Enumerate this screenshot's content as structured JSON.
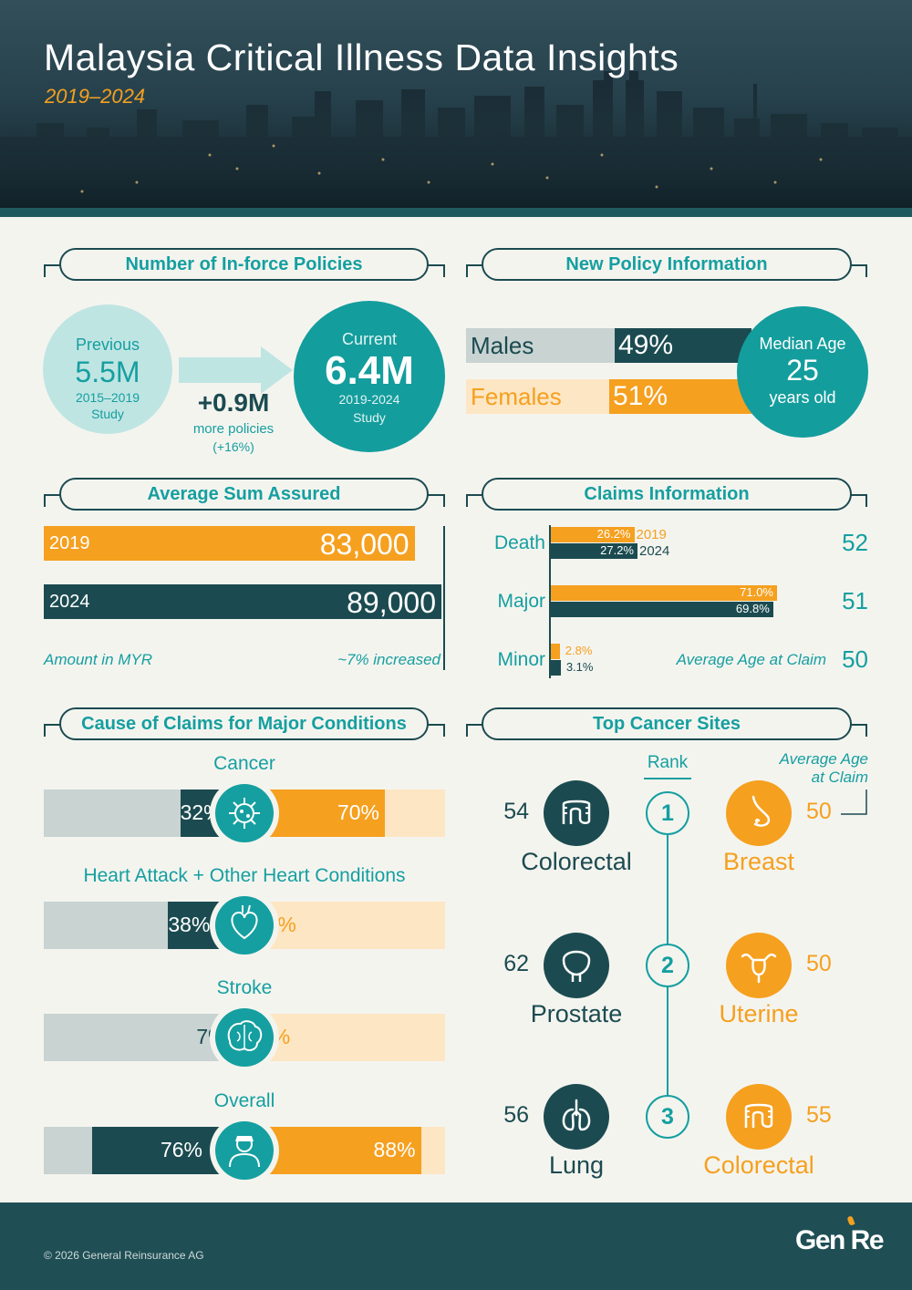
{
  "header": {
    "title": "Malaysia Critical Illness Data Insights",
    "subtitle": "2019–2024"
  },
  "inforce": {
    "title": "Number of In-force Policies",
    "previous": {
      "label": "Previous",
      "value": "5.5M",
      "period": "2015–2019",
      "study": "Study"
    },
    "current": {
      "label": "Current",
      "value": "6.4M",
      "period": "2019-2024",
      "study": "Study"
    },
    "change": {
      "value": "+0.9M",
      "text": "more policies",
      "pct": "(+16%)"
    }
  },
  "newpolicy": {
    "title": "New Policy Information",
    "males_label": "Males",
    "males_pct": "49%",
    "females_label": "Females",
    "females_pct": "51%",
    "median_label": "Median Age",
    "median_value": "25",
    "median_unit": "years old"
  },
  "sum_assured": {
    "title": "Average Sum Assured",
    "note_left": "Amount in MYR",
    "note_right": "~7% increased"
  },
  "claims": {
    "title": "Claims Information",
    "legend_2019": "2019",
    "legend_2024": "2024",
    "avg_age_label": "Average Age at Claim"
  },
  "major": {
    "title": "Cause of Claims for Major Conditions",
    "rows": [
      {
        "label": "Cancer",
        "left": "32%",
        "right": "70%",
        "icon": "virus-icon"
      },
      {
        "label": "Heart Attack + Other Heart Conditions",
        "left": "38%",
        "right": "8%",
        "icon": "heart-icon"
      },
      {
        "label": "Stroke",
        "left": "7%",
        "right": "5%",
        "icon": "brain-icon"
      },
      {
        "label": "Overall",
        "left": "76%",
        "right": "88%",
        "icon": "person-icon"
      }
    ]
  },
  "cancer": {
    "title": "Top Cancer Sites",
    "rank_label": "Rank",
    "avg_age_label_1": "Average Age",
    "avg_age_label_2": "at Claim",
    "rows": [
      {
        "rank": "1",
        "male_age": "54",
        "male_site": "Colorectal",
        "male_icon": "intestine-icon",
        "female_age": "50",
        "female_site": "Breast",
        "female_icon": "breast-icon"
      },
      {
        "rank": "2",
        "male_age": "62",
        "male_site": "Prostate",
        "male_icon": "prostate-icon",
        "female_age": "50",
        "female_site": "Uterine",
        "female_icon": "uterus-icon"
      },
      {
        "rank": "3",
        "male_age": "56",
        "male_site": "Lung",
        "male_icon": "lungs-icon",
        "female_age": "55",
        "female_site": "Colorectal",
        "female_icon": "intestine-icon"
      }
    ]
  },
  "footer": {
    "copyright": "© 2026 General Reinsurance AG",
    "logo": "Gen Re"
  },
  "colors": {
    "teal": "#159fa0",
    "dark_teal": "#1b4b50",
    "orange": "#f5a01f",
    "light_orange": "#fde6c3",
    "grey": "#c8d3d2"
  },
  "chart_data": [
    {
      "type": "bar",
      "title": "Average Sum Assured",
      "categories": [
        "2019",
        "2024"
      ],
      "values": [
        83000,
        89000
      ],
      "value_labels": [
        "83,000",
        "89,000"
      ],
      "ylim": [
        0,
        89000
      ]
    },
    {
      "type": "bar",
      "title": "Claims Information",
      "categories": [
        "Death",
        "Major",
        "Minor"
      ],
      "series": [
        {
          "name": "2019",
          "values": [
            26.2,
            71.0,
            2.8
          ],
          "labels": [
            "26.2%",
            "71.0%",
            "2.8%"
          ]
        },
        {
          "name": "2024",
          "values": [
            27.2,
            69.8,
            3.1
          ],
          "labels": [
            "27.2%",
            "69.8%",
            "3.1%"
          ]
        }
      ],
      "average_age_at_claim": [
        52,
        51,
        50
      ],
      "ylim": [
        0,
        100
      ]
    },
    {
      "type": "bar",
      "title": "Cause of Claims for Major Conditions",
      "categories": [
        "Cancer",
        "Heart Attack + Other Heart Conditions",
        "Stroke",
        "Overall"
      ],
      "series": [
        {
          "values": [
            32,
            38,
            7,
            76
          ]
        },
        {
          "values": [
            70,
            8,
            5,
            88
          ]
        }
      ],
      "ylim": [
        0,
        100
      ]
    }
  ]
}
